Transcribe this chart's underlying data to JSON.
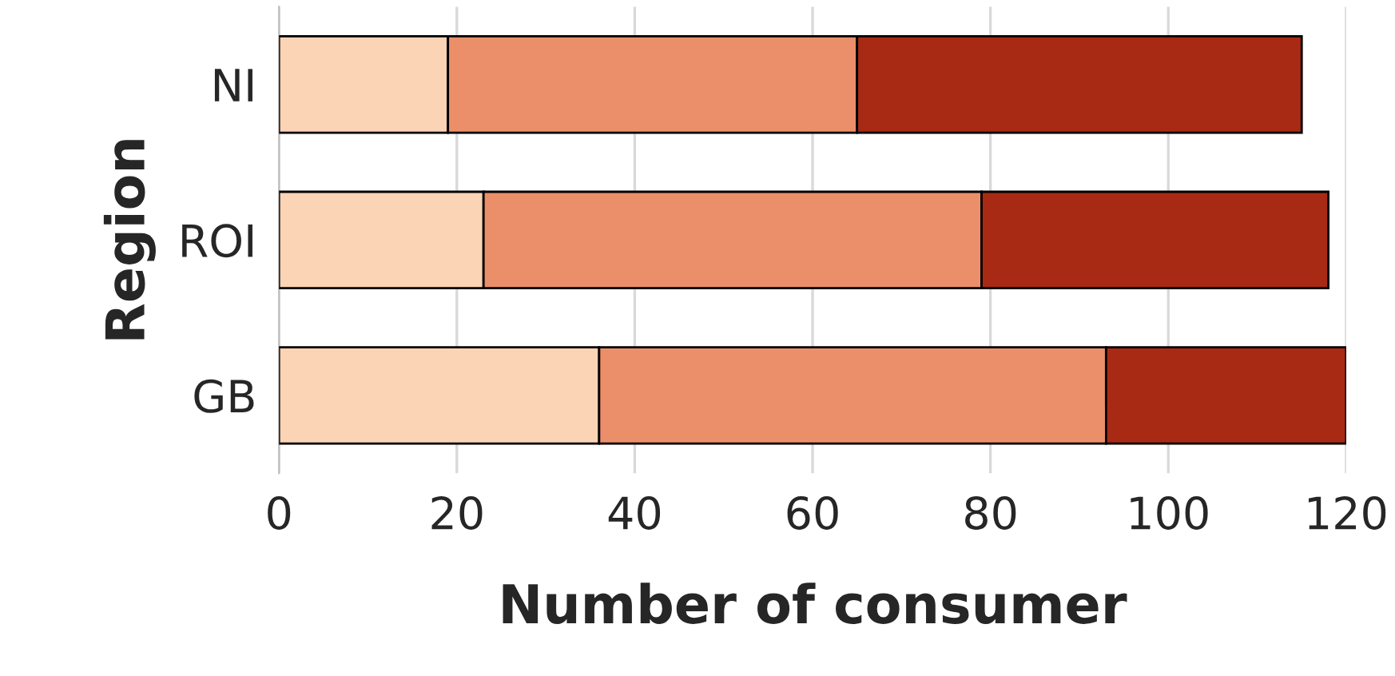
{
  "chart_data": {
    "type": "bar",
    "orientation": "horizontal",
    "stacked": true,
    "xlabel": "Number of consumer",
    "ylabel": "Region",
    "categories": [
      "NI",
      "ROI",
      "GB"
    ],
    "series": [
      {
        "color": "#fbd3b5",
        "values": [
          19,
          23,
          36
        ]
      },
      {
        "color": "#eb8f6a",
        "values": [
          46,
          56,
          57
        ]
      },
      {
        "color": "#a82a14",
        "values": [
          50,
          39,
          27
        ]
      }
    ],
    "xlim": [
      0,
      120
    ],
    "xticks": [
      0,
      20,
      40,
      60,
      80,
      100,
      120
    ],
    "grid": "x",
    "legend": false
  }
}
